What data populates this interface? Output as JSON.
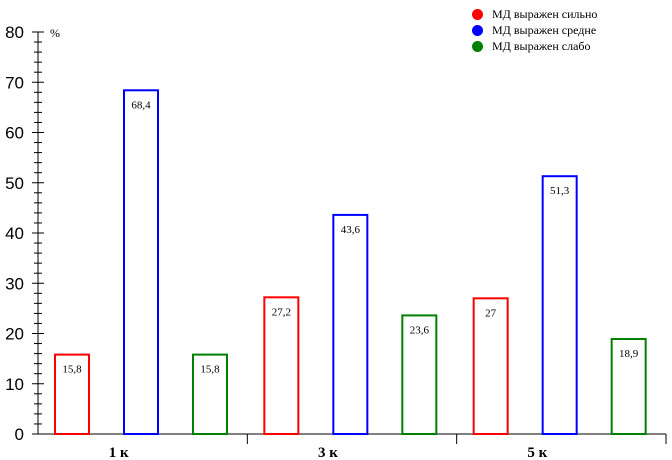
{
  "chart_data": {
    "type": "bar",
    "categories": [
      "1 к",
      "3 к",
      "5 к"
    ],
    "series": [
      {
        "name": "МД выражен сильно",
        "color": "#ff0000",
        "values": [
          15.8,
          27.2,
          27
        ],
        "labels": [
          "15,8",
          "27,2",
          "27"
        ]
      },
      {
        "name": "МД выражен средне",
        "color": "#0000ff",
        "values": [
          68.4,
          43.6,
          51.3
        ],
        "labels": [
          "68,4",
          "43,6",
          "51,3"
        ]
      },
      {
        "name": "МД выражен слабо",
        "color": "#008000",
        "values": [
          15.8,
          23.6,
          18.9
        ],
        "labels": [
          "15,8",
          "23,6",
          "18,9"
        ]
      }
    ],
    "ylabel": "%",
    "ylim": [
      0,
      80
    ],
    "yticks": [
      0,
      10,
      20,
      30,
      40,
      50,
      60,
      70,
      80
    ],
    "legend_position": "top-right",
    "grid": false
  }
}
